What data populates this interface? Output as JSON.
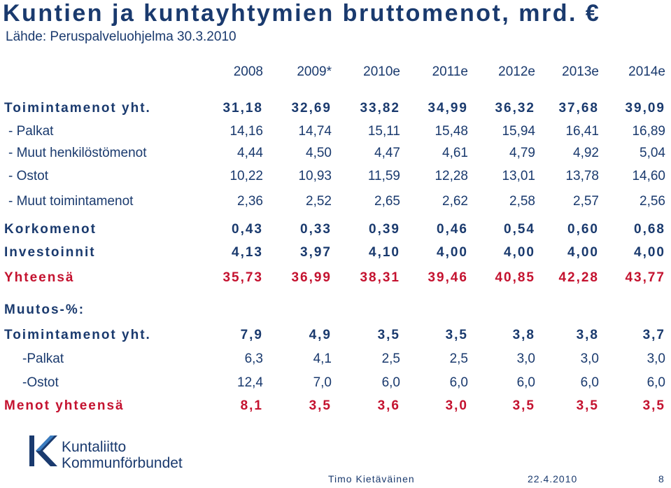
{
  "title": "Kuntien ja kuntayhtymien bruttomenot, mrd. €",
  "source": "Lähde: Peruspalveluohjelma 30.3.2010",
  "years": [
    "2008",
    "2009*",
    "2010e",
    "2011e",
    "2012e",
    "2013e",
    "2014e"
  ],
  "rows": [
    {
      "label": "Toimintamenot yht.",
      "values": [
        "31,18",
        "32,69",
        "33,82",
        "34,99",
        "36,32",
        "37,68",
        "39,09"
      ]
    },
    {
      "label": "- Palkat",
      "values": [
        "14,16",
        "14,74",
        "15,11",
        "15,48",
        "15,94",
        "16,41",
        "16,89"
      ]
    },
    {
      "label": "- Muut henkilöstömenot",
      "values": [
        "4,44",
        "4,50",
        "4,47",
        "4,61",
        "4,79",
        "4,92",
        "5,04"
      ]
    },
    {
      "label": "- Ostot",
      "values": [
        "10,22",
        "10,93",
        "11,59",
        "12,28",
        "13,01",
        "13,78",
        "14,60"
      ]
    },
    {
      "label": "- Muut toimintamenot",
      "values": [
        "2,36",
        "2,52",
        "2,65",
        "2,62",
        "2,58",
        "2,57",
        "2,56"
      ]
    },
    {
      "label": "Korkomenot",
      "values": [
        "0,43",
        "0,33",
        "0,39",
        "0,46",
        "0,54",
        "0,60",
        "0,68"
      ]
    },
    {
      "label": "Investoinnit",
      "values": [
        "4,13",
        "3,97",
        "4,10",
        "4,00",
        "4,00",
        "4,00",
        "4,00"
      ]
    },
    {
      "label": "Yhteensä",
      "values": [
        "35,73",
        "36,99",
        "38,31",
        "39,46",
        "40,85",
        "42,28",
        "43,77"
      ]
    }
  ],
  "change_header": "Muutos-%:",
  "change_rows": [
    {
      "label": "Toimintamenot yht.",
      "values": [
        "7,9",
        "4,9",
        "3,5",
        "3,5",
        "3,8",
        "3,8",
        "3,7"
      ]
    },
    {
      "label": "-Palkat",
      "values": [
        "6,3",
        "4,1",
        "2,5",
        "2,5",
        "3,0",
        "3,0",
        "3,0"
      ]
    },
    {
      "label": "-Ostot",
      "values": [
        "12,4",
        "7,0",
        "6,0",
        "6,0",
        "6,0",
        "6,0",
        "6,0"
      ]
    },
    {
      "label": "Menot yhteensä",
      "values": [
        "8,1",
        "3,5",
        "3,6",
        "3,0",
        "3,5",
        "3,5",
        "3,5"
      ]
    }
  ],
  "logo": {
    "line1": "Kuntaliitto",
    "line2": "Kommunförbundet"
  },
  "footer": {
    "author": "Timo Kietäväinen",
    "date": "22.4.2010",
    "page": "8"
  },
  "colors": {
    "navy": "#1a3a6e",
    "red": "#c4122f"
  }
}
